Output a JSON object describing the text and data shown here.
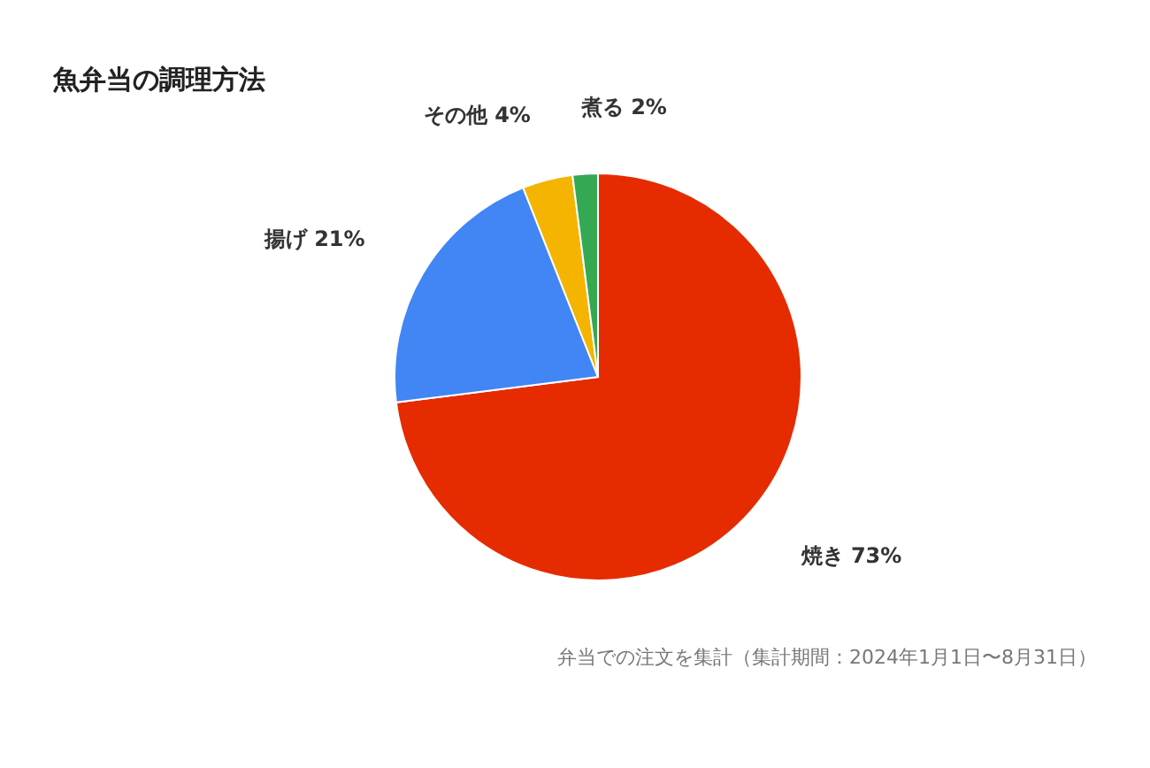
{
  "chart_data": {
    "type": "pie",
    "title": "魚弁当の調理方法",
    "categories": [
      "焼き",
      "揚げ",
      "その他",
      "煮る"
    ],
    "values": [
      73,
      21,
      4,
      2
    ],
    "value_labels": [
      "73%",
      "21%",
      "4%",
      "2%"
    ],
    "colors": [
      "#e62b00",
      "#4285f4",
      "#f4b400",
      "#34a853"
    ],
    "annotations": [
      "弁当での注文を集計（集計期間：2024年1月1日〜8月31日）"
    ]
  }
}
